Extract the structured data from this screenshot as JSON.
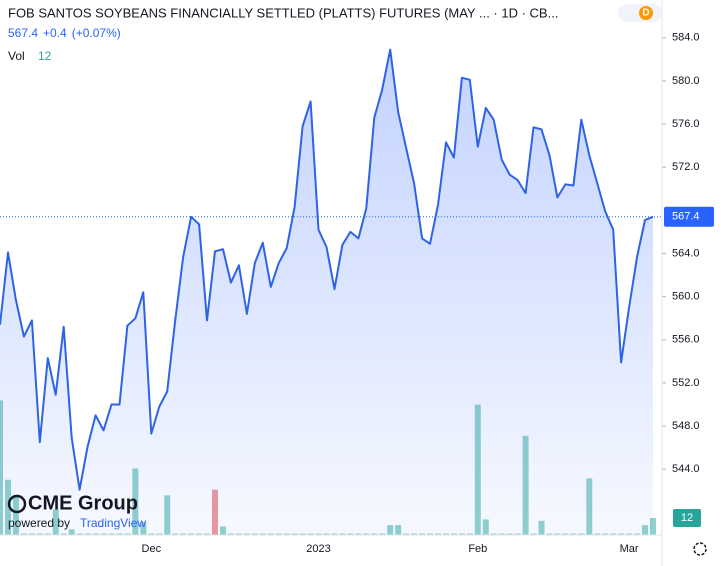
{
  "chart_data": {
    "type": "line",
    "title": "FOB SANTOS SOYBEANS FINANCIALLY SETTLED (PLATTS) FUTURES (MAY ... · 1D · CB...",
    "change": "+0.4",
    "change_pct": "(+0.07%)",
    "color": "#2f63e6",
    "logo": {
      "brand": "CME Group",
      "powered": "powered by",
      "platform": "TradingView"
    },
    "interval_badge": "D",
    "categories": [
      null,
      null,
      null,
      null,
      null,
      null,
      null,
      null,
      null,
      null,
      null,
      null,
      null,
      null,
      null,
      null,
      null,
      null,
      null,
      "Dec",
      null,
      null,
      null,
      null,
      null,
      null,
      null,
      null,
      null,
      null,
      null,
      null,
      null,
      null,
      null,
      null,
      null,
      null,
      null,
      null,
      "2023",
      null,
      null,
      null,
      null,
      null,
      null,
      null,
      null,
      null,
      null,
      null,
      null,
      null,
      null,
      null,
      null,
      null,
      null,
      null,
      "Feb",
      null,
      null,
      null,
      null,
      null,
      null,
      null,
      null,
      null,
      null,
      null,
      null,
      null,
      null,
      null,
      null,
      null,
      null,
      "Mar",
      null,
      null,
      null
    ],
    "values": [
      557.4,
      564.1,
      559.7,
      556.3,
      557.8,
      546.5,
      554.3,
      550.9,
      557.2,
      546.9,
      542.1,
      546.1,
      549.0,
      547.6,
      550.0,
      550.0,
      557.3,
      558.0,
      560.4,
      547.3,
      549.8,
      551.2,
      557.8,
      563.7,
      567.4,
      566.7,
      557.8,
      564.2,
      564.4,
      561.3,
      562.9,
      558.4,
      563.1,
      565.0,
      560.9,
      563.1,
      564.5,
      568.3,
      575.8,
      578.1,
      566.2,
      564.6,
      560.7,
      564.8,
      566.0,
      565.4,
      568.2,
      576.6,
      579.2,
      582.9,
      577.1,
      573.8,
      570.5,
      565.4,
      564.9,
      568.5,
      574.3,
      572.9,
      580.3,
      580.1,
      573.9,
      577.5,
      576.4,
      572.7,
      571.3,
      570.8,
      569.6,
      575.7,
      575.5,
      573.1,
      569.2,
      570.4,
      570.3,
      576.4,
      573.1,
      570.5,
      567.9,
      566.2,
      553.9,
      559.0,
      563.7,
      567.1,
      567.4
    ],
    "volume": {
      "name": "Vol",
      "values": [
        95,
        39,
        28,
        1,
        1,
        1,
        1,
        18,
        1,
        4,
        1,
        1,
        1,
        1,
        1,
        1,
        1,
        47,
        9,
        1,
        1,
        28,
        1,
        1,
        1,
        1,
        1,
        32,
        6,
        1,
        1,
        1,
        1,
        1,
        1,
        1,
        1,
        1,
        1,
        1,
        1,
        1,
        1,
        1,
        1,
        1,
        1,
        1,
        1,
        7,
        7,
        1,
        1,
        1,
        1,
        1,
        1,
        1,
        1,
        1,
        92,
        11,
        1,
        1,
        1,
        1,
        70,
        1,
        10,
        1,
        1,
        1,
        1,
        1,
        40,
        1,
        1,
        1,
        1,
        1,
        1,
        7,
        12
      ],
      "colors": [
        "#92d2cc",
        "#92d2cc",
        "#92d2cc",
        "#92d2cc",
        "#92d2cc",
        "#92d2cc",
        "#92d2cc",
        "#92d2cc",
        "#92d2cc",
        "#92d2cc",
        "#92d2cc",
        "#92d2cc",
        "#92d2cc",
        "#92d2cc",
        "#92d2cc",
        "#92d2cc",
        "#92d2cc",
        "#92d2cc",
        "#92d2cc",
        "#92d2cc",
        "#92d2cc",
        "#92d2cc",
        "#92d2cc",
        "#92d2cc",
        "#92d2cc",
        "#92d2cc",
        "#92d2cc",
        "#ef9a9a",
        "#92d2cc",
        "#92d2cc",
        "#92d2cc",
        "#92d2cc",
        "#92d2cc",
        "#92d2cc",
        "#92d2cc",
        "#92d2cc",
        "#92d2cc",
        "#92d2cc",
        "#92d2cc",
        "#92d2cc",
        "#92d2cc",
        "#92d2cc",
        "#92d2cc",
        "#92d2cc",
        "#92d2cc",
        "#92d2cc",
        "#92d2cc",
        "#92d2cc",
        "#92d2cc",
        "#92d2cc",
        "#92d2cc",
        "#92d2cc",
        "#92d2cc",
        "#92d2cc",
        "#92d2cc",
        "#92d2cc",
        "#92d2cc",
        "#92d2cc",
        "#92d2cc",
        "#92d2cc",
        "#92d2cc",
        "#92d2cc",
        "#92d2cc",
        "#92d2cc",
        "#92d2cc",
        "#92d2cc",
        "#92d2cc",
        "#92d2cc",
        "#92d2cc",
        "#92d2cc",
        "#92d2cc",
        "#92d2cc",
        "#92d2cc",
        "#92d2cc",
        "#92d2cc",
        "#92d2cc",
        "#92d2cc",
        "#92d2cc",
        "#92d2cc",
        "#92d2cc",
        "#92d2cc",
        "#92d2cc",
        "#92d2cc"
      ]
    },
    "ylim": [
      537.9,
      587.5
    ],
    "yticks": [
      {
        "value": 544,
        "label": "544.0"
      },
      {
        "value": 548,
        "label": "548.0"
      },
      {
        "value": 552,
        "label": "552.0"
      },
      {
        "value": 556,
        "label": "556.0"
      },
      {
        "value": 560,
        "label": "560.0"
      },
      {
        "value": 564,
        "label": "564.0"
      },
      {
        "value": 572,
        "label": "572.0"
      },
      {
        "value": 576,
        "label": "576.0"
      },
      {
        "value": 580,
        "label": "580.0"
      },
      {
        "value": 584,
        "label": "584.0"
      }
    ],
    "grid": false
  }
}
